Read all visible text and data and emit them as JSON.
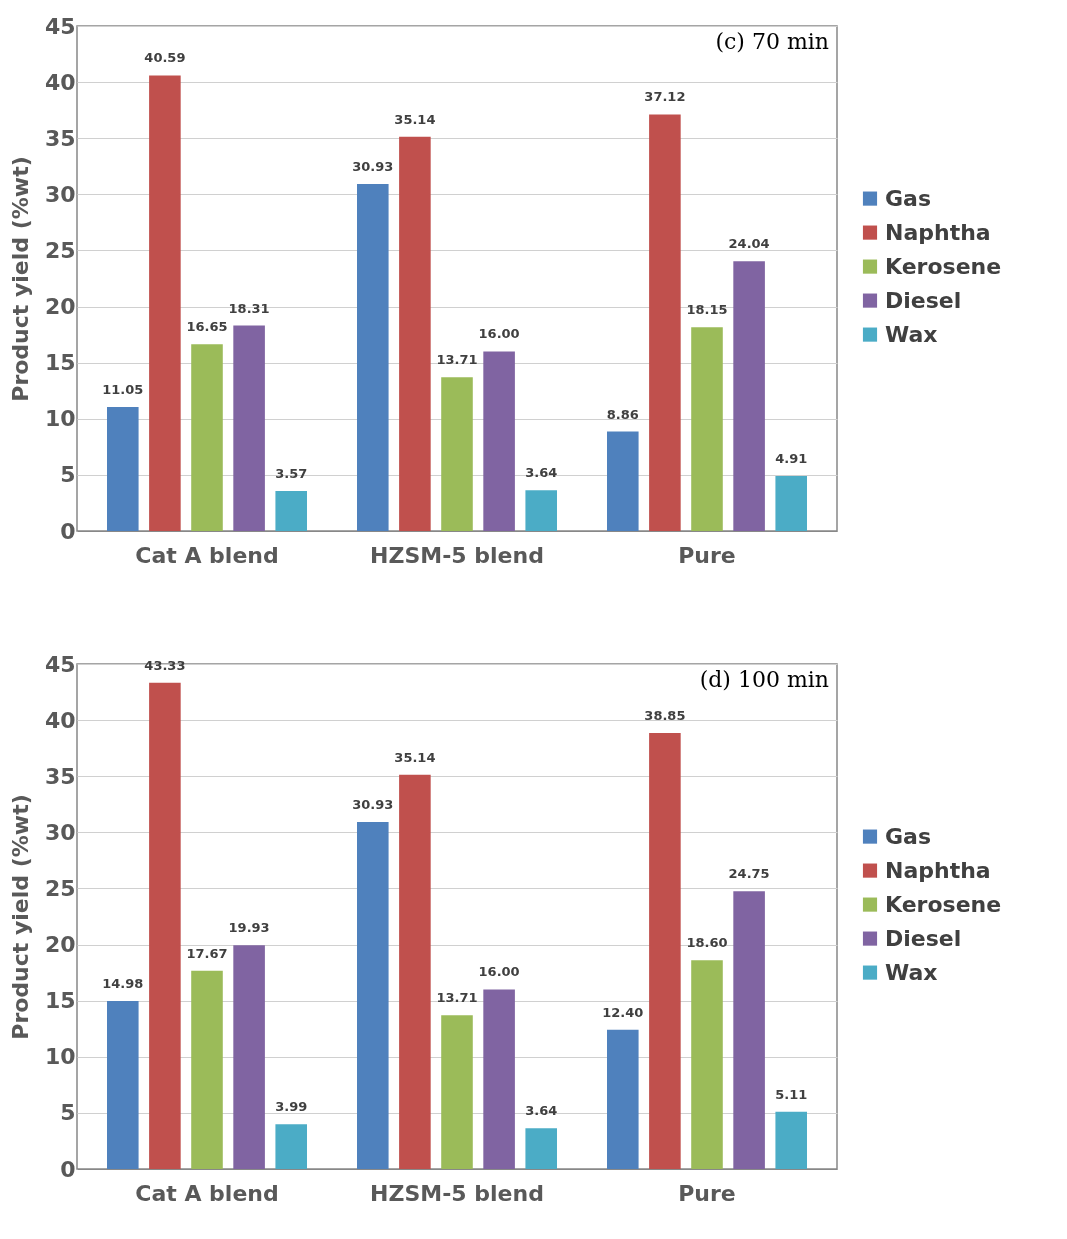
{
  "chart_data": [
    {
      "type": "bar",
      "ylabel": "Product yield (%wt)",
      "annotations": [
        "(c) 70 min"
      ],
      "categories": [
        "Cat A blend",
        "HZSM-5 blend",
        "Pure"
      ],
      "series": [
        {
          "name": "Gas",
          "color": "#4f81bd",
          "values": [
            11.05,
            30.93,
            8.86
          ],
          "value_labels": [
            "11.05",
            "30.93",
            "8.86"
          ]
        },
        {
          "name": "Naphtha",
          "color": "#c0504d",
          "values": [
            40.59,
            35.14,
            37.12
          ],
          "value_labels": [
            "40.59",
            "35.14",
            "37.12"
          ]
        },
        {
          "name": "Kerosene",
          "color": "#9bbb59",
          "values": [
            16.65,
            13.71,
            18.15
          ],
          "value_labels": [
            "16.65",
            "13.71",
            "18.15"
          ]
        },
        {
          "name": "Diesel",
          "color": "#8064a2",
          "values": [
            18.31,
            16.0,
            24.04
          ],
          "value_labels": [
            "18.31",
            "16.00",
            "24.04"
          ]
        },
        {
          "name": "Wax",
          "color": "#4bacc6",
          "values": [
            3.57,
            3.64,
            4.91
          ],
          "value_labels": [
            "3.57",
            "3.64",
            "4.91"
          ]
        }
      ],
      "ylim": [
        0,
        45
      ],
      "yticks": [
        0,
        5,
        10,
        15,
        20,
        25,
        30,
        35,
        40,
        45
      ],
      "grid": "y",
      "legend": "right"
    },
    {
      "type": "bar",
      "ylabel": "Product yield (%wt)",
      "annotations": [
        "(d) 100 min"
      ],
      "categories": [
        "Cat A blend",
        "HZSM-5 blend",
        "Pure"
      ],
      "series": [
        {
          "name": "Gas",
          "color": "#4f81bd",
          "values": [
            14.98,
            30.93,
            12.4
          ],
          "value_labels": [
            "14.98",
            "30.93",
            "12.40"
          ]
        },
        {
          "name": "Naphtha",
          "color": "#c0504d",
          "values": [
            43.33,
            35.14,
            38.85
          ],
          "value_labels": [
            "43.33",
            "35.14",
            "38.85"
          ]
        },
        {
          "name": "Kerosene",
          "color": "#9bbb59",
          "values": [
            17.67,
            13.71,
            18.6
          ],
          "value_labels": [
            "17.67",
            "13.71",
            "18.60"
          ]
        },
        {
          "name": "Diesel",
          "color": "#8064a2",
          "values": [
            19.93,
            16.0,
            24.75
          ],
          "value_labels": [
            "19.93",
            "16.00",
            "24.75"
          ]
        },
        {
          "name": "Wax",
          "color": "#4bacc6",
          "values": [
            3.99,
            3.64,
            5.11
          ],
          "value_labels": [
            "3.99",
            "3.64",
            "5.11"
          ]
        }
      ],
      "ylim": [
        0,
        45
      ],
      "yticks": [
        0,
        5,
        10,
        15,
        20,
        25,
        30,
        35,
        40,
        45
      ],
      "grid": "y",
      "legend": "right"
    }
  ]
}
